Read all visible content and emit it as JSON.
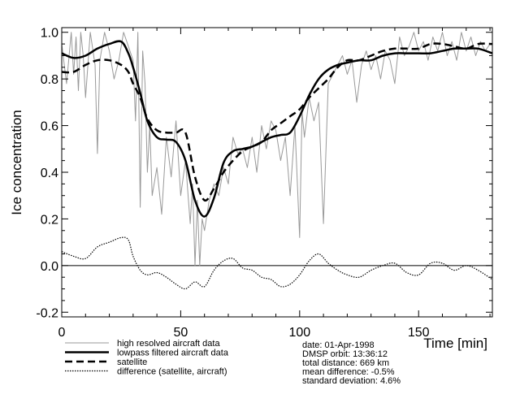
{
  "chart_data": {
    "type": "line",
    "xlabel": "Time [min]",
    "ylabel": "Ice concentration",
    "xlim": [
      0,
      181
    ],
    "ylim": [
      -0.22,
      1.02
    ],
    "xticks": [
      0,
      50,
      100,
      150
    ],
    "yticks": [
      1.0,
      0.8,
      0.6,
      0.4,
      0.2,
      0.0,
      -0.2
    ],
    "ytick_labels": [
      "1.0",
      "0.8",
      "0.6",
      "0.4",
      "0.2",
      "0.0",
      "-0.2"
    ],
    "grid": false,
    "legend_position": "bottom-left",
    "series": [
      {
        "name": "high resolved aircraft data",
        "color": "#999999",
        "style": "thin-noisy",
        "x": [
          0,
          2,
          4,
          5,
          6,
          7,
          8,
          9,
          10,
          12,
          14,
          15,
          16,
          18,
          20,
          22,
          24,
          26,
          28,
          30,
          31,
          32,
          33,
          34,
          35,
          36,
          37,
          38,
          40,
          42,
          44,
          46,
          48,
          50,
          52,
          54,
          55,
          56,
          57,
          58,
          59,
          60,
          62,
          64,
          66,
          68,
          70,
          72,
          74,
          76,
          78,
          80,
          82,
          84,
          86,
          88,
          90,
          92,
          94,
          96,
          98,
          100,
          101,
          102,
          104,
          106,
          108,
          110,
          112,
          114,
          116,
          118,
          120,
          122,
          124,
          126,
          128,
          130,
          132,
          134,
          136,
          138,
          140,
          142,
          144,
          146,
          148,
          150,
          152,
          154,
          156,
          158,
          160,
          162,
          164,
          166,
          168,
          170,
          172,
          174,
          176,
          178,
          180
        ],
        "y": [
          0.95,
          0.78,
          1.0,
          0.82,
          0.98,
          0.75,
          1.0,
          0.9,
          0.72,
          1.0,
          0.86,
          0.48,
          0.88,
          1.0,
          0.92,
          0.8,
          0.88,
          1.0,
          0.94,
          0.88,
          0.62,
          1.0,
          0.25,
          0.92,
          0.78,
          0.4,
          0.6,
          0.3,
          0.42,
          0.22,
          0.55,
          0.38,
          0.62,
          0.3,
          0.45,
          0.18,
          0.35,
          0.0,
          0.28,
          0.0,
          0.2,
          0.15,
          0.28,
          0.35,
          0.3,
          0.42,
          0.35,
          0.55,
          0.48,
          0.5,
          0.42,
          0.55,
          0.4,
          0.6,
          0.5,
          0.62,
          0.58,
          0.45,
          0.55,
          0.3,
          0.6,
          0.12,
          0.66,
          0.55,
          0.72,
          0.62,
          0.7,
          0.18,
          0.78,
          0.82,
          0.86,
          0.9,
          0.82,
          0.88,
          0.7,
          0.86,
          0.92,
          0.84,
          0.9,
          0.8,
          0.92,
          0.88,
          0.78,
          0.98,
          0.9,
          0.94,
          1.0,
          0.92,
          0.96,
          0.88,
          0.98,
          0.92,
          1.0,
          0.9,
          0.96,
          0.88,
          1.0,
          0.92,
          0.98,
          0.9,
          0.96,
          0.92,
          0.95
        ]
      },
      {
        "name": "lowpass filtered aircraft data",
        "color": "#000000",
        "style": "solid-thick",
        "x": [
          0,
          5,
          10,
          15,
          20,
          25,
          28,
          30,
          33,
          36,
          40,
          44,
          48,
          52,
          56,
          60,
          64,
          68,
          72,
          76,
          80,
          84,
          88,
          92,
          96,
          100,
          104,
          108,
          112,
          116,
          120,
          125,
          130,
          135,
          140,
          145,
          150,
          155,
          160,
          165,
          170,
          175,
          181
        ],
        "y": [
          0.91,
          0.89,
          0.9,
          0.93,
          0.95,
          0.96,
          0.91,
          0.85,
          0.74,
          0.62,
          0.55,
          0.54,
          0.53,
          0.45,
          0.28,
          0.21,
          0.29,
          0.44,
          0.49,
          0.5,
          0.51,
          0.53,
          0.55,
          0.56,
          0.57,
          0.64,
          0.73,
          0.8,
          0.84,
          0.86,
          0.87,
          0.88,
          0.88,
          0.9,
          0.91,
          0.91,
          0.91,
          0.91,
          0.92,
          0.93,
          0.93,
          0.93,
          0.91
        ]
      },
      {
        "name": "satellite",
        "color": "#000000",
        "style": "dashed-thick",
        "x": [
          0,
          5,
          10,
          15,
          20,
          25,
          28,
          30,
          33,
          36,
          40,
          44,
          48,
          52,
          56,
          60,
          64,
          68,
          72,
          76,
          80,
          84,
          88,
          92,
          96,
          100,
          104,
          108,
          112,
          116,
          120,
          125,
          130,
          135,
          140,
          145,
          150,
          155,
          160,
          165,
          170,
          175,
          181
        ],
        "y": [
          0.83,
          0.83,
          0.86,
          0.88,
          0.88,
          0.86,
          0.83,
          0.78,
          0.72,
          0.63,
          0.58,
          0.57,
          0.57,
          0.57,
          0.38,
          0.28,
          0.33,
          0.4,
          0.45,
          0.49,
          0.51,
          0.53,
          0.58,
          0.61,
          0.64,
          0.67,
          0.72,
          0.76,
          0.8,
          0.85,
          0.88,
          0.88,
          0.9,
          0.92,
          0.93,
          0.93,
          0.93,
          0.95,
          0.95,
          0.94,
          0.93,
          0.95,
          0.95
        ]
      },
      {
        "name": "difference (satellite, aircraft)",
        "color": "#000000",
        "style": "dotted",
        "x": [
          0,
          5,
          10,
          15,
          20,
          25,
          28,
          30,
          33,
          36,
          40,
          44,
          48,
          52,
          56,
          60,
          64,
          68,
          72,
          76,
          80,
          84,
          88,
          92,
          96,
          100,
          104,
          108,
          112,
          116,
          120,
          125,
          130,
          135,
          140,
          145,
          150,
          155,
          160,
          165,
          170,
          175,
          181
        ],
        "y": [
          0.06,
          0.04,
          0.03,
          0.08,
          0.1,
          0.12,
          0.11,
          0.04,
          -0.02,
          -0.04,
          -0.03,
          -0.05,
          -0.08,
          -0.1,
          -0.07,
          -0.09,
          -0.02,
          0.02,
          0.03,
          -0.01,
          -0.02,
          -0.05,
          -0.06,
          -0.09,
          -0.08,
          -0.04,
          0.02,
          0.05,
          0.01,
          -0.02,
          -0.04,
          -0.05,
          -0.02,
          0.0,
          0.01,
          -0.03,
          -0.04,
          0.01,
          0.01,
          -0.02,
          0.0,
          -0.02,
          -0.06
        ]
      }
    ]
  },
  "legend_entries": [
    "high resolved aircraft data",
    "lowpass filtered aircraft data",
    "satellite",
    "difference (satellite, aircraft)"
  ],
  "info": [
    "date: 01-Apr-1998",
    "DMSP orbit: 13:36:12",
    "total distance: 669 km",
    "mean  difference: -0.5%",
    "standard deviation: 4.6%"
  ]
}
